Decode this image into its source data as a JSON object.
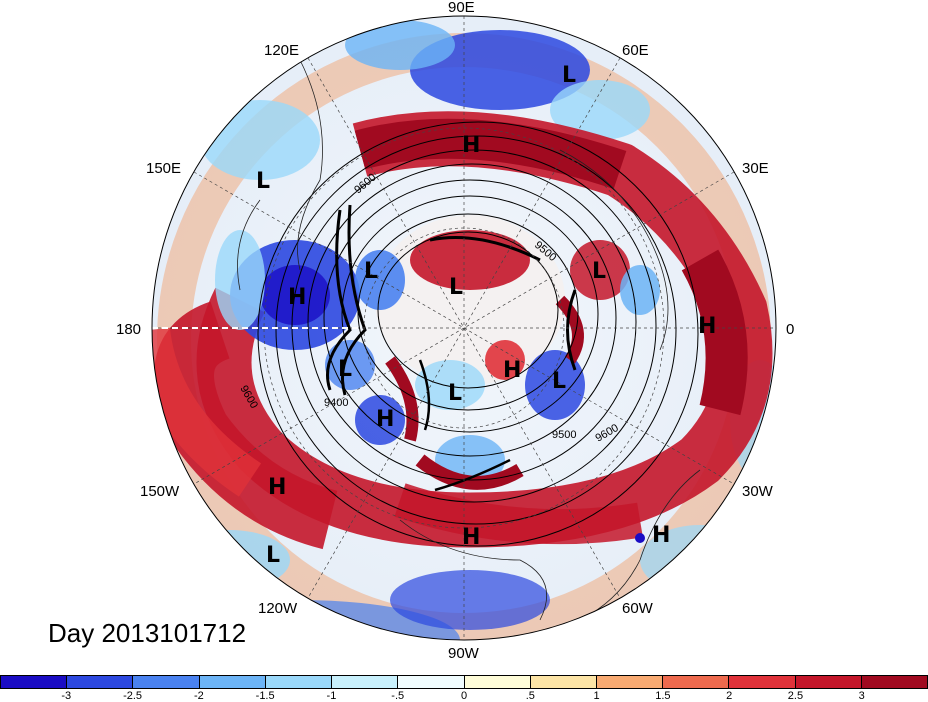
{
  "title": "Day 2013101712",
  "longitude_labels": [
    "90E",
    "60E",
    "120E",
    "150E",
    "30E",
    "180",
    "0",
    "150W",
    "30W",
    "120W",
    "60W",
    "90W"
  ],
  "pressure_systems": [
    {
      "label": "L"
    },
    {
      "label": "H"
    },
    {
      "label": "L"
    },
    {
      "label": "L"
    },
    {
      "label": "H"
    },
    {
      "label": "L"
    },
    {
      "label": "L"
    },
    {
      "label": "H"
    },
    {
      "label": "L"
    },
    {
      "label": "H"
    },
    {
      "label": "L"
    },
    {
      "label": "L"
    },
    {
      "label": "H"
    },
    {
      "label": "H"
    },
    {
      "label": "H"
    },
    {
      "label": "L"
    },
    {
      "label": "H"
    }
  ],
  "contour_labels": [
    "9600",
    "9500",
    "9400",
    "9500",
    "9600",
    "9600"
  ],
  "colorbar": {
    "colors": [
      "#1a0cc4",
      "#2c48e0",
      "#4a82f0",
      "#6cb4f6",
      "#9ad8fa",
      "#c8f0fc",
      "#f0fcfe",
      "#fefcd8",
      "#fce4a6",
      "#f8aa72",
      "#ee6a4e",
      "#e0323a",
      "#c4162a",
      "#a10a20"
    ],
    "labels": [
      "-3",
      "-2.5",
      "-2",
      "-1.5",
      "-1",
      "-.5",
      "0",
      ".5",
      "1",
      "1.5",
      "2",
      "2.5",
      "3"
    ]
  }
}
